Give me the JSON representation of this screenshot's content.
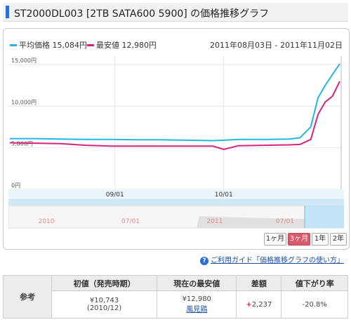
{
  "page": {
    "title": "ST2000DL003 [2TB SATA600 5900] の価格推移グラフ"
  },
  "legend": {
    "avg": {
      "label": "平均価格 15,084円",
      "color": "#26b6e0"
    },
    "min": {
      "label": "最安値 12,980円",
      "color": "#d6247c"
    }
  },
  "date_range": "2011年08月03日 - 2011年11月02日",
  "chart_data": {
    "type": "line",
    "x": [
      "2011-08-03",
      "2011-08-10",
      "2011-08-17",
      "2011-08-24",
      "2011-08-31",
      "2011-09-07",
      "2011-09-14",
      "2011-09-21",
      "2011-09-28",
      "2011-10-01",
      "2011-10-05",
      "2011-10-12",
      "2011-10-19",
      "2011-10-22",
      "2011-10-25",
      "2011-10-27",
      "2011-10-29",
      "2011-10-31",
      "2011-11-02"
    ],
    "series": [
      {
        "name": "平均価格",
        "color": "#26b6e0",
        "values": [
          6100,
          6100,
          6050,
          6000,
          6000,
          5950,
          5950,
          5900,
          5850,
          5900,
          6000,
          6000,
          6050,
          6200,
          7500,
          11000,
          12500,
          13800,
          15084
        ]
      },
      {
        "name": "最安値",
        "color": "#d6247c",
        "values": [
          5600,
          5550,
          5500,
          5300,
          5200,
          5200,
          5200,
          5200,
          5200,
          4800,
          5250,
          5300,
          5350,
          5400,
          6000,
          9000,
          10500,
          11200,
          12980
        ]
      }
    ],
    "y_ticks": [
      "15,000円",
      "10,000円",
      "5,000円",
      "0円"
    ],
    "x_ticks": [
      "09/01",
      "10/01"
    ],
    "ylim": [
      0,
      16000
    ],
    "grid": true
  },
  "navigator": {
    "labels": [
      "2010",
      "07/01",
      "2011",
      "07/01"
    ],
    "label_color": "#e08a8a"
  },
  "range_buttons": [
    {
      "label": "1ヶ月",
      "active": false
    },
    {
      "label": "3ヶ月",
      "active": true
    },
    {
      "label": "1年",
      "active": false
    },
    {
      "label": "2年",
      "active": false
    }
  ],
  "guide": {
    "icon": "question-icon",
    "text": "ご利用ガイド「価格推移グラフの使い方」"
  },
  "reference": {
    "row_label": "参考",
    "headers": [
      "初値（発売時期）",
      "現在の最安値",
      "差額",
      "値下がり率"
    ],
    "initial_price": "¥10,743",
    "initial_date": "(2010/12)",
    "current_min": "¥12,980",
    "shop": "風見鶏",
    "diff_sign": "+",
    "diff": "2,237",
    "drop_rate": "-20.8%"
  }
}
